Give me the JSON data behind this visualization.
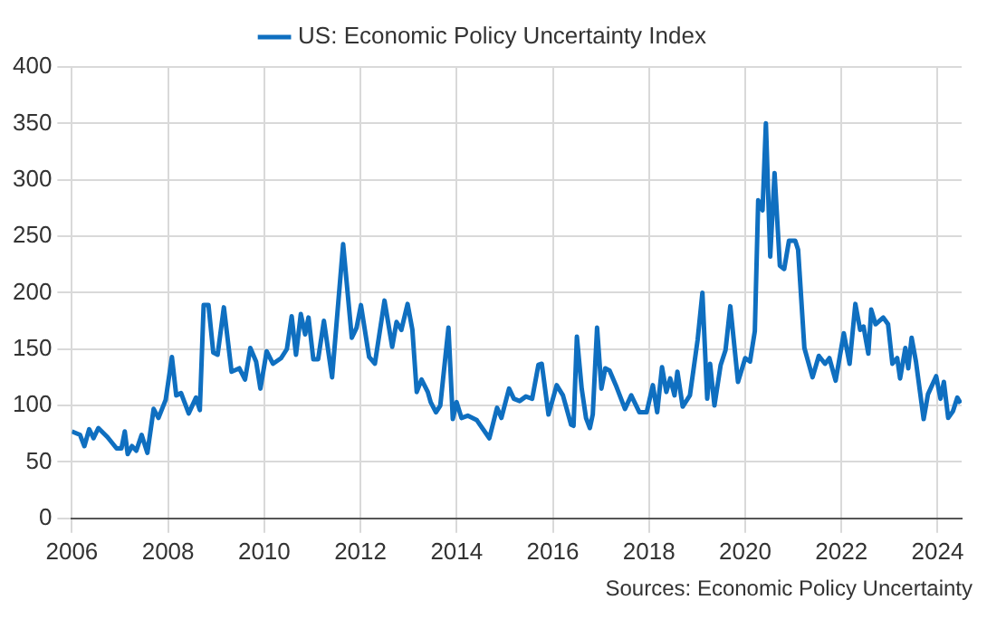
{
  "chart_data": {
    "type": "line",
    "legend": "top",
    "grid": true,
    "marker": "none",
    "line_style": "solid",
    "xlim": [
      2006,
      2024.5
    ],
    "xticks": [
      2006,
      2008,
      2010,
      2012,
      2014,
      2016,
      2018,
      2020,
      2022,
      2024
    ],
    "ylim": [
      0,
      400
    ],
    "yticks": [
      0,
      50,
      100,
      150,
      200,
      250,
      300,
      350,
      400
    ],
    "annotations": [
      "Sources: Economic Policy Uncertainty"
    ],
    "series": [
      {
        "name": "US: Economic Policy Uncertainty Index",
        "color": "#0f6fc0",
        "x": [
          2006.0,
          2006.17,
          2006.26,
          2006.36,
          2006.45,
          2006.55,
          2006.74,
          2006.93,
          2007.03,
          2007.1,
          2007.16,
          2007.25,
          2007.34,
          2007.45,
          2007.57,
          2007.7,
          2007.8,
          2007.95,
          2008.08,
          2008.17,
          2008.27,
          2008.43,
          2008.58,
          2008.66,
          2008.74,
          2008.84,
          2008.94,
          2009.03,
          2009.16,
          2009.32,
          2009.48,
          2009.6,
          2009.71,
          2009.83,
          2009.92,
          2010.05,
          2010.18,
          2010.35,
          2010.47,
          2010.57,
          2010.66,
          2010.76,
          2010.85,
          2010.92,
          2011.02,
          2011.12,
          2011.24,
          2011.41,
          2011.64,
          2011.82,
          2011.92,
          2012.01,
          2012.18,
          2012.3,
          2012.5,
          2012.66,
          2012.75,
          2012.85,
          2012.98,
          2013.08,
          2013.17,
          2013.27,
          2013.4,
          2013.46,
          2013.57,
          2013.66,
          2013.83,
          2013.92,
          2014.0,
          2014.1,
          2014.23,
          2014.42,
          2014.68,
          2014.84,
          2014.93,
          2015.09,
          2015.19,
          2015.31,
          2015.44,
          2015.57,
          2015.7,
          2015.77,
          2015.91,
          2016.08,
          2016.21,
          2016.38,
          2016.43,
          2016.5,
          2016.6,
          2016.69,
          2016.77,
          2016.83,
          2016.92,
          2017.01,
          2017.09,
          2017.18,
          2017.31,
          2017.5,
          2017.63,
          2017.8,
          2017.95,
          2018.08,
          2018.17,
          2018.27,
          2018.36,
          2018.44,
          2018.53,
          2018.59,
          2018.7,
          2018.85,
          2019.01,
          2019.11,
          2019.21,
          2019.27,
          2019.36,
          2019.49,
          2019.59,
          2019.69,
          2019.85,
          2020.0,
          2020.1,
          2020.2,
          2020.27,
          2020.36,
          2020.43,
          2020.52,
          2020.61,
          2020.72,
          2020.81,
          2020.91,
          2021.04,
          2021.1,
          2021.23,
          2021.4,
          2021.53,
          2021.66,
          2021.75,
          2021.88,
          2022.05,
          2022.17,
          2022.29,
          2022.39,
          2022.46,
          2022.56,
          2022.62,
          2022.71,
          2022.87,
          2022.97,
          2023.06,
          2023.16,
          2023.22,
          2023.33,
          2023.39,
          2023.46,
          2023.55,
          2023.71,
          2023.8,
          2023.97,
          2024.06,
          2024.13,
          2024.22,
          2024.32,
          2024.41,
          2024.48
        ],
        "values": [
          77,
          74,
          64,
          79,
          71,
          80,
          72,
          62,
          62,
          77,
          57,
          64,
          60,
          74,
          58,
          97,
          89,
          105,
          143,
          109,
          111,
          93,
          107,
          96,
          189,
          189,
          147,
          145,
          187,
          130,
          133,
          123,
          151,
          139,
          115,
          148,
          137,
          142,
          150,
          179,
          145,
          181,
          163,
          178,
          141,
          141,
          175,
          125,
          243,
          160,
          169,
          189,
          143,
          137,
          193,
          152,
          174,
          167,
          190,
          167,
          112,
          123,
          112,
          103,
          94,
          100,
          169,
          88,
          103,
          89,
          91,
          87,
          71,
          98,
          89,
          115,
          106,
          104,
          108,
          106,
          136,
          137,
          92,
          118,
          109,
          83,
          82,
          161,
          115,
          89,
          80,
          92,
          169,
          115,
          133,
          131,
          118,
          97,
          109,
          94,
          94,
          118,
          94,
          134,
          112,
          124,
          109,
          130,
          99,
          109,
          158,
          200,
          106,
          137,
          100,
          136,
          149,
          188,
          121,
          142,
          139,
          166,
          282,
          273,
          350,
          232,
          306,
          224,
          221,
          246,
          246,
          238,
          151,
          125,
          144,
          137,
          142,
          122,
          164,
          137,
          190,
          167,
          170,
          146,
          185,
          172,
          178,
          172,
          137,
          142,
          124,
          151,
          133,
          160,
          139,
          88,
          110,
          126,
          106,
          121,
          89,
          95,
          107,
          102
        ]
      }
    ]
  }
}
